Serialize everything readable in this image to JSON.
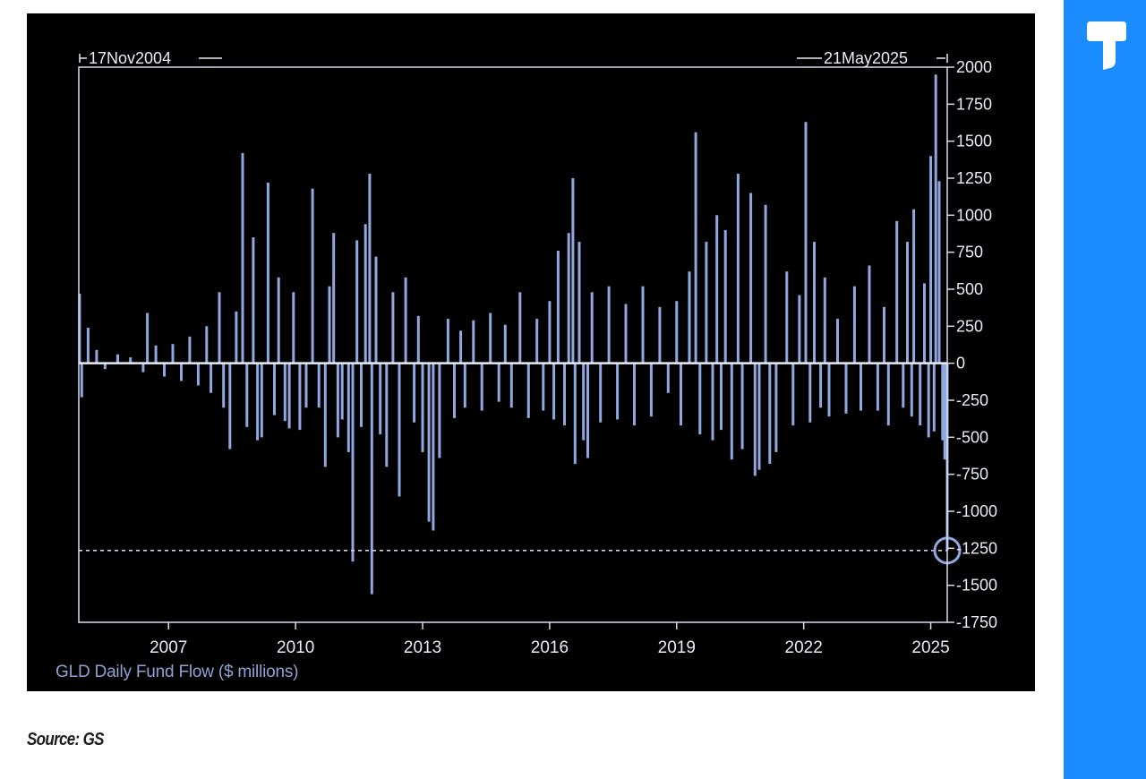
{
  "chart_data": {
    "type": "bar",
    "title": "",
    "caption": "GLD Daily Fund Flow ($ millions)",
    "xlabel": "",
    "ylabel": "",
    "start_label": "17Nov2004",
    "end_label": "21May2025",
    "x_start_year": 2004.88,
    "x_end_year": 2025.39,
    "ylim": [
      -1750,
      2000
    ],
    "y_ticks": [
      2000,
      1750,
      1500,
      1250,
      1000,
      750,
      500,
      250,
      0,
      -250,
      -500,
      -750,
      -1000,
      -1250,
      -1500,
      -1750
    ],
    "x_ticks": [
      2007,
      2010,
      2013,
      2016,
      2019,
      2022,
      2025
    ],
    "reference_line": {
      "value": -1265,
      "style": "dashed"
    },
    "highlight": {
      "year": 2025.39,
      "value": -1265
    },
    "bar_color": "#8fa8e0",
    "grid": false,
    "series": [
      {
        "values": [
          [
            2004.9,
            470
          ],
          [
            2004.95,
            -230
          ],
          [
            2005.1,
            240
          ],
          [
            2005.3,
            90
          ],
          [
            2005.5,
            -40
          ],
          [
            2005.8,
            60
          ],
          [
            2006.1,
            40
          ],
          [
            2006.4,
            -60
          ],
          [
            2006.5,
            340
          ],
          [
            2006.7,
            120
          ],
          [
            2006.9,
            -90
          ],
          [
            2007.1,
            130
          ],
          [
            2007.3,
            -120
          ],
          [
            2007.5,
            180
          ],
          [
            2007.7,
            -150
          ],
          [
            2007.9,
            250
          ],
          [
            2008.0,
            -200
          ],
          [
            2008.2,
            480
          ],
          [
            2008.3,
            -300
          ],
          [
            2008.45,
            -580
          ],
          [
            2008.6,
            350
          ],
          [
            2008.75,
            1420
          ],
          [
            2008.85,
            -430
          ],
          [
            2009.0,
            850
          ],
          [
            2009.1,
            -520
          ],
          [
            2009.2,
            -500
          ],
          [
            2009.35,
            1220
          ],
          [
            2009.5,
            -350
          ],
          [
            2009.6,
            580
          ],
          [
            2009.75,
            -390
          ],
          [
            2009.85,
            -440
          ],
          [
            2009.95,
            480
          ],
          [
            2010.1,
            -450
          ],
          [
            2010.25,
            -300
          ],
          [
            2010.4,
            1180
          ],
          [
            2010.55,
            -300
          ],
          [
            2010.7,
            -700
          ],
          [
            2010.8,
            520
          ],
          [
            2010.9,
            880
          ],
          [
            2011.0,
            -500
          ],
          [
            2011.1,
            -380
          ],
          [
            2011.25,
            -600
          ],
          [
            2011.35,
            -1340
          ],
          [
            2011.45,
            830
          ],
          [
            2011.55,
            -430
          ],
          [
            2011.65,
            940
          ],
          [
            2011.75,
            1280
          ],
          [
            2011.8,
            -1560
          ],
          [
            2011.9,
            720
          ],
          [
            2012.0,
            -480
          ],
          [
            2012.15,
            -700
          ],
          [
            2012.3,
            480
          ],
          [
            2012.45,
            -900
          ],
          [
            2012.6,
            580
          ],
          [
            2012.8,
            -400
          ],
          [
            2012.9,
            320
          ],
          [
            2013.0,
            -600
          ],
          [
            2013.15,
            -1070
          ],
          [
            2013.25,
            -1130
          ],
          [
            2013.4,
            -640
          ],
          [
            2013.6,
            300
          ],
          [
            2013.75,
            -370
          ],
          [
            2013.9,
            220
          ],
          [
            2014.0,
            -300
          ],
          [
            2014.2,
            290
          ],
          [
            2014.4,
            -320
          ],
          [
            2014.6,
            340
          ],
          [
            2014.8,
            -260
          ],
          [
            2014.95,
            260
          ],
          [
            2015.1,
            -300
          ],
          [
            2015.3,
            480
          ],
          [
            2015.5,
            -370
          ],
          [
            2015.7,
            300
          ],
          [
            2015.85,
            -320
          ],
          [
            2016.0,
            420
          ],
          [
            2016.1,
            -380
          ],
          [
            2016.2,
            760
          ],
          [
            2016.35,
            -420
          ],
          [
            2016.45,
            880
          ],
          [
            2016.55,
            1250
          ],
          [
            2016.6,
            -680
          ],
          [
            2016.7,
            820
          ],
          [
            2016.8,
            -520
          ],
          [
            2016.9,
            -640
          ],
          [
            2017.0,
            480
          ],
          [
            2017.2,
            -400
          ],
          [
            2017.4,
            520
          ],
          [
            2017.6,
            -380
          ],
          [
            2017.8,
            400
          ],
          [
            2018.0,
            -420
          ],
          [
            2018.2,
            520
          ],
          [
            2018.4,
            -360
          ],
          [
            2018.6,
            380
          ],
          [
            2018.8,
            -200
          ],
          [
            2019.0,
            420
          ],
          [
            2019.1,
            -420
          ],
          [
            2019.3,
            620
          ],
          [
            2019.45,
            1560
          ],
          [
            2019.55,
            -480
          ],
          [
            2019.7,
            820
          ],
          [
            2019.85,
            -520
          ],
          [
            2019.95,
            1000
          ],
          [
            2020.05,
            -450
          ],
          [
            2020.15,
            900
          ],
          [
            2020.3,
            -650
          ],
          [
            2020.45,
            1280
          ],
          [
            2020.55,
            -580
          ],
          [
            2020.75,
            1150
          ],
          [
            2020.85,
            -760
          ],
          [
            2020.95,
            -720
          ],
          [
            2021.1,
            1070
          ],
          [
            2021.2,
            -680
          ],
          [
            2021.35,
            -600
          ],
          [
            2021.6,
            620
          ],
          [
            2021.75,
            -420
          ],
          [
            2021.9,
            460
          ],
          [
            2022.05,
            1630
          ],
          [
            2022.15,
            -400
          ],
          [
            2022.25,
            820
          ],
          [
            2022.4,
            -300
          ],
          [
            2022.5,
            580
          ],
          [
            2022.6,
            -360
          ],
          [
            2022.8,
            300
          ],
          [
            2023.0,
            -340
          ],
          [
            2023.2,
            520
          ],
          [
            2023.35,
            -320
          ],
          [
            2023.55,
            660
          ],
          [
            2023.75,
            -320
          ],
          [
            2023.9,
            380
          ],
          [
            2024.0,
            -420
          ],
          [
            2024.2,
            960
          ],
          [
            2024.35,
            -300
          ],
          [
            2024.45,
            820
          ],
          [
            2024.55,
            -360
          ],
          [
            2024.6,
            1040
          ],
          [
            2024.75,
            -420
          ],
          [
            2024.85,
            540
          ],
          [
            2024.95,
            -500
          ],
          [
            2025.0,
            1400
          ],
          [
            2025.08,
            -460
          ],
          [
            2025.12,
            1950
          ],
          [
            2025.2,
            1230
          ],
          [
            2025.28,
            -520
          ],
          [
            2025.33,
            -650
          ],
          [
            2025.39,
            -1265
          ]
        ]
      }
    ]
  },
  "source": "Source: GS",
  "brand": {
    "accent": "#1a8cff"
  }
}
